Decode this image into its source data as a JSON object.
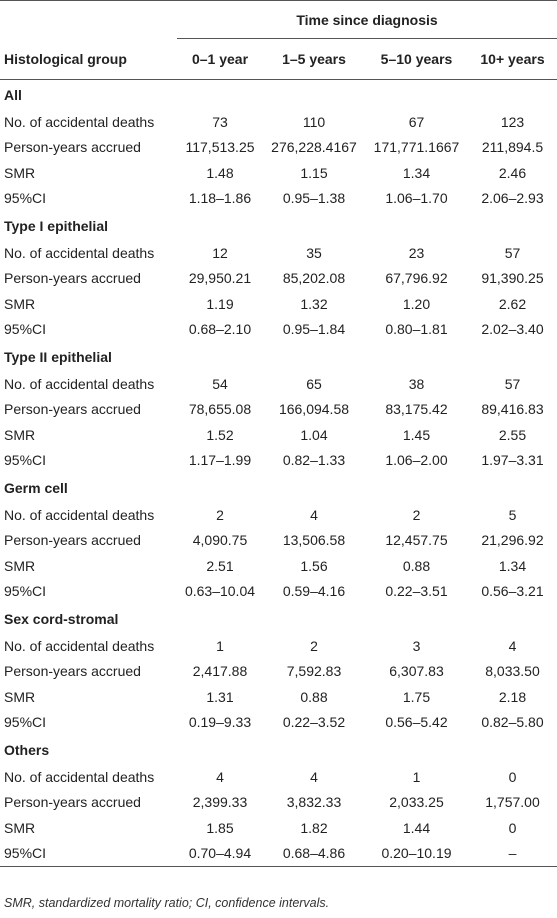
{
  "header": {
    "span_label": "Time since diagnosis",
    "first_column": "Histological group",
    "periods": [
      "0–1 year",
      "1–5 years",
      "5–10 years",
      "10+ years"
    ]
  },
  "groups": [
    {
      "name": "All",
      "rows": [
        {
          "label": "No. of accidental deaths",
          "values": [
            "73",
            "110",
            "67",
            "123"
          ]
        },
        {
          "label": "Person-years accrued",
          "values": [
            "117,513.25",
            "276,228.4167",
            "171,771.1667",
            "211,894.5"
          ]
        },
        {
          "label": "SMR",
          "values": [
            "1.48",
            "1.15",
            "1.34",
            "2.46"
          ]
        },
        {
          "label": "95%CI",
          "values": [
            "1.18–1.86",
            "0.95–1.38",
            "1.06–1.70",
            "2.06–2.93"
          ]
        }
      ]
    },
    {
      "name": "Type I epithelial",
      "rows": [
        {
          "label": "No. of accidental deaths",
          "values": [
            "12",
            "35",
            "23",
            "57"
          ]
        },
        {
          "label": "Person-years accrued",
          "values": [
            "29,950.21",
            "85,202.08",
            "67,796.92",
            "91,390.25"
          ]
        },
        {
          "label": "SMR",
          "values": [
            "1.19",
            "1.32",
            "1.20",
            "2.62"
          ]
        },
        {
          "label": "95%CI",
          "values": [
            "0.68–2.10",
            "0.95–1.84",
            "0.80–1.81",
            "2.02–3.40"
          ]
        }
      ]
    },
    {
      "name": "Type II epithelial",
      "rows": [
        {
          "label": "No. of accidental deaths",
          "values": [
            "54",
            "65",
            "38",
            "57"
          ]
        },
        {
          "label": "Person-years accrued",
          "values": [
            "78,655.08",
            "166,094.58",
            "83,175.42",
            "89,416.83"
          ]
        },
        {
          "label": "SMR",
          "values": [
            "1.52",
            "1.04",
            "1.45",
            "2.55"
          ]
        },
        {
          "label": "95%CI",
          "values": [
            "1.17–1.99",
            "0.82–1.33",
            "1.06–2.00",
            "1.97–3.31"
          ]
        }
      ]
    },
    {
      "name": "Germ cell",
      "rows": [
        {
          "label": "No. of accidental deaths",
          "values": [
            "2",
            "4",
            "2",
            "5"
          ]
        },
        {
          "label": "Person-years accrued",
          "values": [
            "4,090.75",
            "13,506.58",
            "12,457.75",
            "21,296.92"
          ]
        },
        {
          "label": "SMR",
          "values": [
            "2.51",
            "1.56",
            "0.88",
            "1.34"
          ]
        },
        {
          "label": "95%CI",
          "values": [
            "0.63–10.04",
            "0.59–4.16",
            "0.22–3.51",
            "0.56–3.21"
          ]
        }
      ]
    },
    {
      "name": "Sex cord-stromal",
      "rows": [
        {
          "label": "No. of accidental deaths",
          "values": [
            "1",
            "2",
            "3",
            "4"
          ]
        },
        {
          "label": "Person-years accrued",
          "values": [
            "2,417.88",
            "7,592.83",
            "6,307.83",
            "8,033.50"
          ]
        },
        {
          "label": "SMR",
          "values": [
            "1.31",
            "0.88",
            "1.75",
            "2.18"
          ]
        },
        {
          "label": "95%CI",
          "values": [
            "0.19–9.33",
            "0.22–3.52",
            "0.56–5.42",
            "0.82–5.80"
          ]
        }
      ]
    },
    {
      "name": "Others",
      "rows": [
        {
          "label": "No. of accidental deaths",
          "values": [
            "4",
            "4",
            "1",
            "0"
          ]
        },
        {
          "label": "Person-years accrued",
          "values": [
            "2,399.33",
            "3,832.33",
            "2,033.25",
            "1,757.00"
          ]
        },
        {
          "label": "SMR",
          "values": [
            "1.85",
            "1.82",
            "1.44",
            "0"
          ]
        },
        {
          "label": "95%CI",
          "values": [
            "0.70–4.94",
            "0.68–4.86",
            "0.20–10.19",
            "–"
          ]
        }
      ]
    }
  ],
  "footnote": "SMR, standardized mortality ratio; CI, confidence intervals."
}
